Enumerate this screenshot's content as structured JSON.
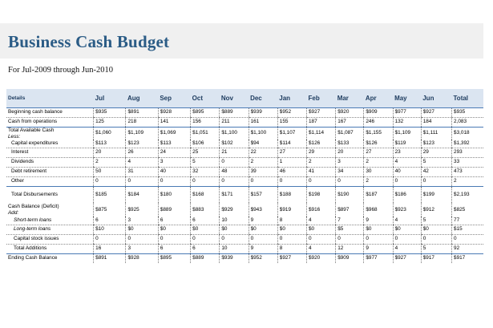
{
  "title": "Business Cash Budget",
  "subtitle": "For Jul-2009 through Jun-2010",
  "columns": {
    "label": "Details",
    "months": [
      "Jul",
      "Aug",
      "Sep",
      "Oct",
      "Nov",
      "Dec",
      "Jan",
      "Feb",
      "Mar",
      "Apr",
      "May",
      "Jun"
    ],
    "total": "Total"
  },
  "rows": {
    "beginning": {
      "label": "Beginning cash balance",
      "values": [
        "$935",
        "$891",
        "$928",
        "$895",
        "$889",
        "$939",
        "$952",
        "$927",
        "$920",
        "$909",
        "$977",
        "$927"
      ],
      "total": "$935"
    },
    "operations": {
      "label": "Cash from operations",
      "values": [
        "125",
        "218",
        "141",
        "156",
        "211",
        "161",
        "155",
        "187",
        "167",
        "246",
        "132",
        "184"
      ],
      "total": "2,083"
    },
    "total_available": {
      "label": "Total Available Cash",
      "values": [
        "$1,060",
        "$1,109",
        "$1,069",
        "$1,051",
        "$1,100",
        "$1,100",
        "$1,107",
        "$1,114",
        "$1,087",
        "$1,155",
        "$1,109",
        "$1,111"
      ],
      "total": "$3,018"
    },
    "less_label": "Less:",
    "capital_exp": {
      "label": "Capital expenditures",
      "values": [
        "$113",
        "$123",
        "$113",
        "$106",
        "$102",
        "$94",
        "$114",
        "$126",
        "$133",
        "$126",
        "$119",
        "$123"
      ],
      "total": "$1,392"
    },
    "interest": {
      "label": "Interest",
      "values": [
        "20",
        "26",
        "24",
        "25",
        "21",
        "22",
        "27",
        "29",
        "20",
        "27",
        "23",
        "29"
      ],
      "total": "293"
    },
    "dividends": {
      "label": "Dividends",
      "values": [
        "2",
        "4",
        "3",
        "5",
        "0",
        "2",
        "1",
        "2",
        "3",
        "2",
        "4",
        "5"
      ],
      "total": "33"
    },
    "debt": {
      "label": "Debt retirement",
      "values": [
        "50",
        "31",
        "40",
        "32",
        "48",
        "39",
        "46",
        "41",
        "34",
        "30",
        "40",
        "42"
      ],
      "total": "473"
    },
    "other": {
      "label": "Other",
      "values": [
        "0",
        "0",
        "0",
        "0",
        "0",
        "0",
        "0",
        "0",
        "0",
        "2",
        "0",
        "0"
      ],
      "total": "2"
    },
    "total_disb": {
      "label": "Total Disbursements",
      "values": [
        "$185",
        "$184",
        "$180",
        "$168",
        "$171",
        "$157",
        "$188",
        "$198",
        "$190",
        "$187",
        "$186",
        "$199"
      ],
      "total": "$2,193"
    },
    "cash_balance": {
      "label": "Cash Balance (Deficit)",
      "values": [
        "$875",
        "$925",
        "$889",
        "$883",
        "$929",
        "$943",
        "$919",
        "$916",
        "$897",
        "$968",
        "$923",
        "$912"
      ],
      "total": "$825"
    },
    "add_label": "Add:",
    "short_term": {
      "label": "Short-term loans",
      "values": [
        "6",
        "3",
        "6",
        "6",
        "10",
        "9",
        "8",
        "4",
        "7",
        "9",
        "4",
        "5"
      ],
      "total": "77"
    },
    "long_term": {
      "label": "Long-term loans",
      "values": [
        "$10",
        "$0",
        "$0",
        "$0",
        "$0",
        "$0",
        "$0",
        "$0",
        "$5",
        "$0",
        "$0",
        "$0"
      ],
      "total": "$15"
    },
    "stock": {
      "label": "Capital stock issues",
      "values": [
        "0",
        "0",
        "0",
        "0",
        "0",
        "0",
        "0",
        "0",
        "0",
        "0",
        "0",
        "0"
      ],
      "total": "0"
    },
    "total_add": {
      "label": "Total Additions",
      "values": [
        "16",
        "3",
        "6",
        "6",
        "10",
        "9",
        "8",
        "4",
        "12",
        "9",
        "4",
        "5"
      ],
      "total": "92"
    },
    "ending": {
      "label": "Ending Cash Balance",
      "values": [
        "$891",
        "$928",
        "$895",
        "$889",
        "$939",
        "$952",
        "$927",
        "$920",
        "$909",
        "$977",
        "$927",
        "$917"
      ],
      "total": "$917"
    }
  }
}
